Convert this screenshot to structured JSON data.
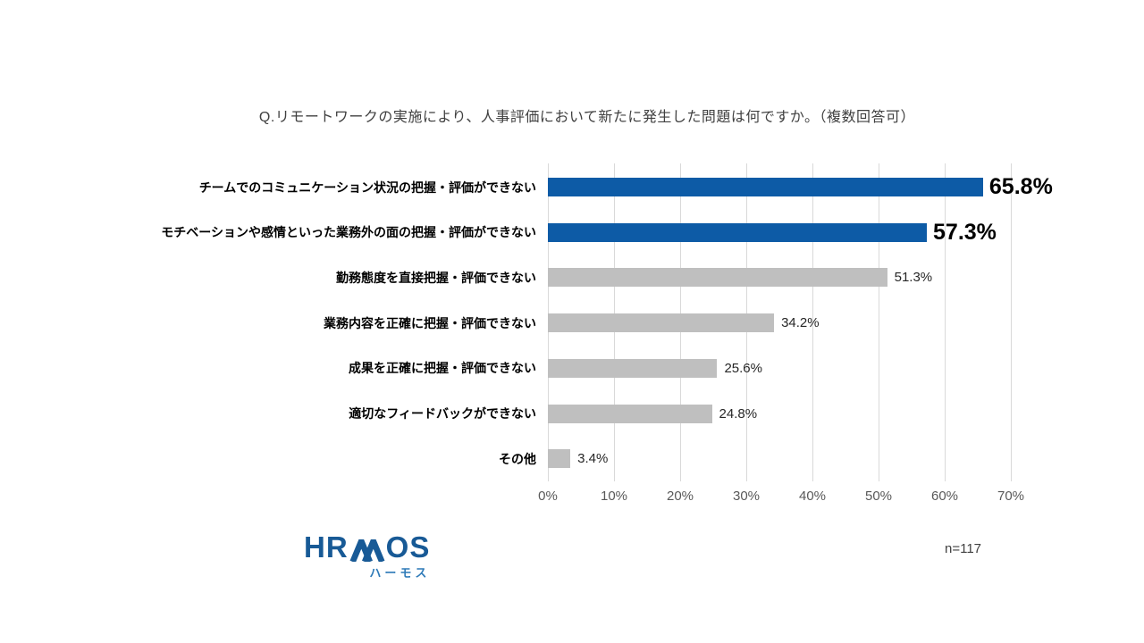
{
  "chart_data": {
    "type": "bar",
    "orientation": "horizontal",
    "title": "Q.リモートワークの実施により、人事評価において新たに発生した問題は何ですか。（複数回答可）",
    "categories": [
      "チームでのコミュニケーション状況の把握・評価ができない",
      "モチベーションや感情といった業務外の面の把握・評価ができない",
      "勤務態度を直接把握・評価できない",
      "業務内容を正確に把握・評価できない",
      "成果を正確に把握・評価できない",
      "適切なフィードバックができない",
      "その他"
    ],
    "values": [
      65.8,
      57.3,
      51.3,
      34.2,
      25.6,
      24.8,
      3.4
    ],
    "value_labels": [
      "65.8%",
      "57.3%",
      "51.3%",
      "34.2%",
      "25.6%",
      "24.8%",
      "3.4%"
    ],
    "highlight_indices": [
      0,
      1
    ],
    "xlim": [
      0,
      70
    ],
    "x_tick_labels": [
      "0%",
      "10%",
      "20%",
      "30%",
      "40%",
      "50%",
      "60%",
      "70%"
    ],
    "grid": true,
    "legend": "none",
    "colors": {
      "bar_highlight": "#0d5ba6",
      "bar_default": "#bfbfbf",
      "gridline": "#d9d9d9",
      "title_text": "#404040",
      "axis_text": "#595959",
      "category_text": "#000000",
      "value_text_highlight": "#000000",
      "value_text_default": "#262626"
    }
  },
  "footer": {
    "logo_text": "HRMOS",
    "logo_subtext": "ハーモス",
    "logo_color": "#185a96",
    "logo_subtext_color": "#2e7ab8",
    "sample_size": "n=117"
  }
}
